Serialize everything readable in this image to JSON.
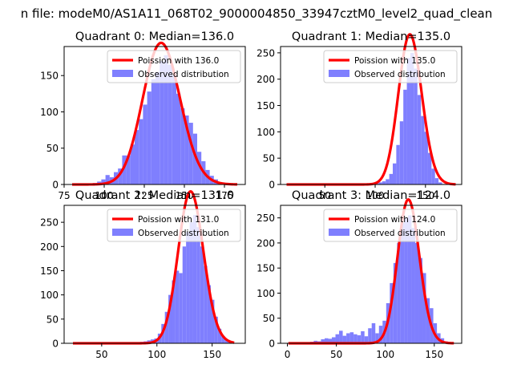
{
  "figure": {
    "suptitle": "n file: modeM0/AS1A11_068T02_9000004850_33947cztM0_level2_quad_clean",
    "colors": {
      "bars": "#7f7ffe",
      "poisson": "#ff0000",
      "axes": "#000000"
    }
  },
  "chart_data": [
    {
      "type": "bar",
      "title": "Quadrant 0: Median=136.0",
      "xlim": [
        75,
        188
      ],
      "ylim": [
        0,
        190
      ],
      "xticks": [
        75,
        100,
        125,
        150,
        175
      ],
      "yticks": [
        0,
        50,
        100,
        150
      ],
      "legend": {
        "placement": "top-right",
        "line_label": "Poission with 136.0",
        "bar_label": "Observed distribution"
      },
      "poisson_mean": 136.0,
      "poisson_scale": 5700,
      "poisson_range": [
        80,
        183
      ],
      "bin_width": 2.6,
      "bins": [
        [
          80,
          0
        ],
        [
          82.6,
          0
        ],
        [
          85.2,
          0
        ],
        [
          87.8,
          0
        ],
        [
          90.4,
          1
        ],
        [
          93,
          2
        ],
        [
          95.6,
          4
        ],
        [
          98.2,
          7
        ],
        [
          100.8,
          13
        ],
        [
          103.4,
          10
        ],
        [
          106,
          17
        ],
        [
          108.6,
          22
        ],
        [
          111.2,
          40
        ],
        [
          113.8,
          40
        ],
        [
          116.4,
          55
        ],
        [
          119,
          75
        ],
        [
          121.6,
          90
        ],
        [
          124.2,
          110
        ],
        [
          126.8,
          128
        ],
        [
          129.4,
          145
        ],
        [
          132,
          155
        ],
        [
          134.6,
          170
        ],
        [
          137.2,
          178
        ],
        [
          139.8,
          165
        ],
        [
          142.4,
          150
        ],
        [
          145,
          125
        ],
        [
          147.6,
          105
        ],
        [
          150.2,
          95
        ],
        [
          152.8,
          85
        ],
        [
          155.4,
          70
        ],
        [
          158,
          45
        ],
        [
          160.6,
          32
        ],
        [
          163.2,
          20
        ],
        [
          165.8,
          12
        ],
        [
          168.4,
          7
        ],
        [
          171,
          3
        ],
        [
          173.6,
          2
        ],
        [
          176.2,
          1
        ]
      ]
    },
    {
      "type": "bar",
      "title": "Quadrant 1: Median=135.0",
      "xlim": [
        6,
        186
      ],
      "ylim": [
        0,
        262
      ],
      "xticks": [
        50,
        100,
        150
      ],
      "yticks": [
        0,
        50,
        100,
        150,
        200,
        250
      ],
      "legend": {
        "placement": "top-right",
        "line_label": "Poission with 135.0",
        "bar_label": "Observed distribution"
      },
      "poisson_mean": 135.0,
      "poisson_scale": 8300,
      "poisson_range": [
        12,
        180
      ],
      "bin_width": 3.5,
      "bins": [
        [
          100,
          2
        ],
        [
          103.5,
          4
        ],
        [
          107,
          6
        ],
        [
          110.5,
          10
        ],
        [
          114,
          20
        ],
        [
          117.5,
          40
        ],
        [
          121,
          75
        ],
        [
          124.5,
          120
        ],
        [
          128,
          180
        ],
        [
          131.5,
          240
        ],
        [
          135,
          250
        ],
        [
          138.5,
          220
        ],
        [
          142,
          170
        ],
        [
          145.5,
          130
        ],
        [
          149,
          100
        ],
        [
          152.5,
          60
        ],
        [
          156,
          30
        ],
        [
          159.5,
          12
        ],
        [
          163,
          4
        ],
        [
          166.5,
          1
        ]
      ]
    },
    {
      "type": "bar",
      "title": "Quadrant 2: Median=131.0",
      "xlim": [
        16,
        180
      ],
      "ylim": [
        0,
        285
      ],
      "xticks": [
        50,
        100,
        150
      ],
      "yticks": [
        0,
        50,
        100,
        150,
        200,
        250
      ],
      "legend": {
        "placement": "top-right",
        "line_label": "Poission with 131.0",
        "bar_label": "Observed distribution"
      },
      "poisson_mean": 131.0,
      "poisson_scale": 9000,
      "poisson_range": [
        24,
        170
      ],
      "bin_width": 3.2,
      "bins": [
        [
          24,
          0
        ],
        [
          27.2,
          0
        ],
        [
          30.4,
          0
        ],
        [
          33.6,
          0
        ],
        [
          36.8,
          0
        ],
        [
          40,
          0
        ],
        [
          43.2,
          0
        ],
        [
          46.4,
          0
        ],
        [
          49.6,
          0
        ],
        [
          52.8,
          0
        ],
        [
          56,
          0
        ],
        [
          59.2,
          0
        ],
        [
          62.4,
          0
        ],
        [
          65.6,
          0
        ],
        [
          68.8,
          0
        ],
        [
          72,
          0
        ],
        [
          75.2,
          0
        ],
        [
          78.4,
          1
        ],
        [
          81.6,
          2
        ],
        [
          84.8,
          3
        ],
        [
          88,
          4
        ],
        [
          91.2,
          6
        ],
        [
          94.4,
          8
        ],
        [
          97.6,
          10
        ],
        [
          100.8,
          20
        ],
        [
          104,
          40
        ],
        [
          107.2,
          65
        ],
        [
          110.4,
          100
        ],
        [
          113.6,
          130
        ],
        [
          116.8,
          150
        ],
        [
          120,
          145
        ],
        [
          123.2,
          200
        ],
        [
          126.4,
          230
        ],
        [
          129.6,
          250
        ],
        [
          132.8,
          265
        ],
        [
          136,
          240
        ],
        [
          139.2,
          200
        ],
        [
          142.4,
          160
        ],
        [
          145.6,
          120
        ],
        [
          148.8,
          90
        ],
        [
          152,
          55
        ],
        [
          155.2,
          30
        ],
        [
          158.4,
          15
        ],
        [
          161.6,
          6
        ],
        [
          164.8,
          2
        ]
      ]
    },
    {
      "type": "bar",
      "title": "Quadrant 3: Median=124.0",
      "xlim": [
        -7,
        178
      ],
      "ylim": [
        0,
        275
      ],
      "xticks": [
        0,
        50,
        100,
        150
      ],
      "yticks": [
        0,
        50,
        100,
        150,
        200,
        250
      ],
      "legend": {
        "placement": "top-right",
        "line_label": "Poission with 124.0",
        "bar_label": "Observed distribution"
      },
      "poisson_mean": 124.0,
      "poisson_scale": 8000,
      "poisson_range": [
        1,
        170
      ],
      "bin_width": 3.7,
      "bins": [
        [
          1,
          0
        ],
        [
          4.7,
          1
        ],
        [
          8.4,
          0
        ],
        [
          12.1,
          2
        ],
        [
          15.8,
          1
        ],
        [
          19.5,
          0
        ],
        [
          23.2,
          3
        ],
        [
          26.9,
          5
        ],
        [
          30.6,
          4
        ],
        [
          34.3,
          8
        ],
        [
          38,
          10
        ],
        [
          41.7,
          9
        ],
        [
          45.4,
          12
        ],
        [
          49.1,
          18
        ],
        [
          52.8,
          25
        ],
        [
          56.5,
          15
        ],
        [
          60.2,
          20
        ],
        [
          63.9,
          22
        ],
        [
          67.6,
          18
        ],
        [
          71.3,
          16
        ],
        [
          75,
          24
        ],
        [
          78.7,
          14
        ],
        [
          82.4,
          30
        ],
        [
          86.1,
          40
        ],
        [
          89.8,
          20
        ],
        [
          93.5,
          35
        ],
        [
          97.2,
          45
        ],
        [
          100.9,
          80
        ],
        [
          104.6,
          120
        ],
        [
          108.3,
          160
        ],
        [
          112,
          200
        ],
        [
          115.7,
          240
        ],
        [
          119.4,
          250
        ],
        [
          123.1,
          255
        ],
        [
          126.8,
          230
        ],
        [
          130.5,
          200
        ],
        [
          134.2,
          170
        ],
        [
          137.9,
          140
        ],
        [
          141.6,
          90
        ],
        [
          145.3,
          70
        ],
        [
          149,
          40
        ],
        [
          152.7,
          20
        ],
        [
          156.4,
          10
        ],
        [
          160.1,
          4
        ],
        [
          163.8,
          1
        ]
      ]
    }
  ]
}
